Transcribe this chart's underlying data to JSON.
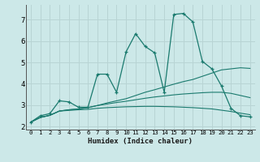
{
  "xlabel": "Humidex (Indice chaleur)",
  "background_color": "#cce8e8",
  "grid_color": "#b8d4d4",
  "line_color": "#1a7a6e",
  "x_data": [
    0,
    1,
    2,
    3,
    4,
    5,
    6,
    7,
    8,
    9,
    10,
    11,
    12,
    13,
    14,
    15,
    16,
    17,
    18,
    19,
    20,
    21,
    22,
    23
  ],
  "series_main": [
    2.2,
    2.5,
    2.6,
    3.2,
    3.15,
    2.9,
    2.9,
    4.45,
    4.45,
    3.6,
    5.5,
    6.35,
    5.75,
    5.45,
    3.6,
    7.25,
    7.3,
    6.9,
    5.05,
    4.7,
    3.9,
    2.85,
    2.5,
    2.45
  ],
  "series_upper": [
    2.2,
    2.42,
    2.52,
    2.72,
    2.78,
    2.82,
    2.88,
    2.98,
    3.1,
    3.2,
    3.3,
    3.45,
    3.6,
    3.72,
    3.85,
    3.98,
    4.1,
    4.2,
    4.35,
    4.5,
    4.65,
    4.7,
    4.75,
    4.72
  ],
  "series_mid": [
    2.2,
    2.42,
    2.52,
    2.72,
    2.78,
    2.82,
    2.88,
    2.98,
    3.05,
    3.12,
    3.18,
    3.25,
    3.32,
    3.38,
    3.43,
    3.48,
    3.52,
    3.55,
    3.58,
    3.6,
    3.6,
    3.55,
    3.45,
    3.35
  ],
  "series_lower": [
    2.2,
    2.42,
    2.52,
    2.72,
    2.75,
    2.78,
    2.8,
    2.85,
    2.88,
    2.9,
    2.92,
    2.93,
    2.94,
    2.94,
    2.93,
    2.92,
    2.9,
    2.88,
    2.85,
    2.82,
    2.76,
    2.7,
    2.62,
    2.55
  ],
  "ylim": [
    1.85,
    7.7
  ],
  "xlim": [
    -0.5,
    23.5
  ],
  "yticks": [
    2,
    3,
    4,
    5,
    6,
    7
  ],
  "xticks": [
    0,
    1,
    2,
    3,
    4,
    5,
    6,
    7,
    8,
    9,
    10,
    11,
    12,
    13,
    14,
    15,
    16,
    17,
    18,
    19,
    20,
    21,
    22,
    23
  ]
}
